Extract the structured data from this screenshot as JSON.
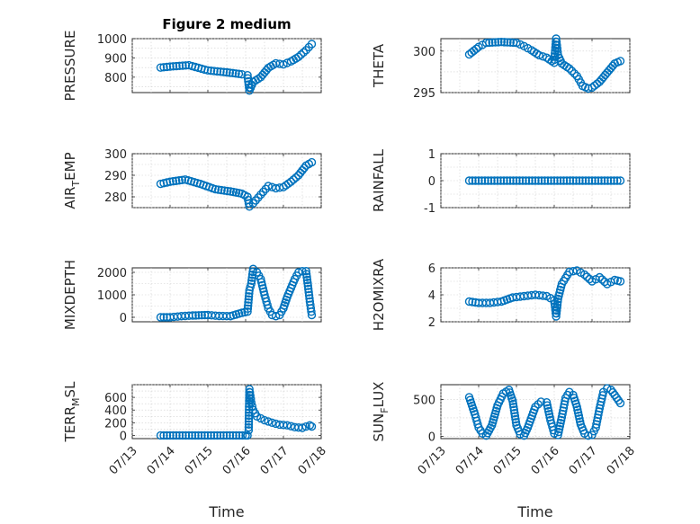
{
  "figure": {
    "title": "Figure 2 medium",
    "xlabel_left": "Time",
    "xlabel_right": "Time",
    "marker_color": "#0072BD"
  },
  "chart_data": [
    {
      "id": "pressure",
      "type": "scatter",
      "ylabel": "PRESSURE",
      "ylabel_sub": "",
      "ylabel_suffix": "",
      "ylim": [
        720,
        1000
      ],
      "yticks": [
        800,
        900,
        1000
      ],
      "xlim": [
        "07/13",
        "07/18"
      ],
      "xticks": [
        "07/13",
        "07/14",
        "07/15",
        "07/16",
        "07/17",
        "07/18"
      ],
      "show_xticklabels": false,
      "x": [
        0.75,
        1.0,
        1.5,
        2.0,
        2.5,
        2.9,
        3.05,
        3.1,
        3.2,
        3.4,
        3.6,
        3.8,
        4.0,
        4.2,
        4.4,
        4.6,
        4.75
      ],
      "y": [
        850,
        855,
        862,
        835,
        825,
        815,
        810,
        730,
        775,
        800,
        848,
        872,
        866,
        882,
        905,
        940,
        972
      ]
    },
    {
      "id": "theta",
      "type": "scatter",
      "ylabel": "THETA",
      "ylabel_sub": "",
      "ylabel_suffix": "",
      "ylim": [
        295,
        301.5
      ],
      "yticks": [
        295,
        300
      ],
      "xlim": [
        "07/13",
        "07/18"
      ],
      "xticks": [
        "07/13",
        "07/14",
        "07/15",
        "07/16",
        "07/17",
        "07/18"
      ],
      "show_xticklabels": false,
      "x": [
        0.75,
        1.0,
        1.2,
        1.6,
        2.0,
        2.2,
        2.4,
        2.6,
        2.8,
        3.0,
        3.05,
        3.1,
        3.2,
        3.4,
        3.6,
        3.75,
        3.9,
        4.0,
        4.2,
        4.4,
        4.6,
        4.75
      ],
      "y": [
        299.6,
        300.5,
        301.0,
        301.1,
        301.0,
        300.6,
        300.1,
        299.5,
        299.2,
        298.6,
        301.5,
        299.5,
        298.5,
        297.9,
        297.0,
        295.8,
        295.5,
        295.6,
        296.3,
        297.4,
        298.5,
        298.8
      ]
    },
    {
      "id": "air_temp",
      "type": "scatter",
      "ylabel": "AIR",
      "ylabel_sub": "T",
      "ylabel_suffix": "EMP",
      "ylim": [
        275,
        300
      ],
      "yticks": [
        280,
        290,
        300
      ],
      "xlim": [
        "07/13",
        "07/18"
      ],
      "xticks": [
        "07/13",
        "07/14",
        "07/15",
        "07/16",
        "07/17",
        "07/18"
      ],
      "show_xticklabels": false,
      "x": [
        0.75,
        1.0,
        1.4,
        1.8,
        2.2,
        2.6,
        2.9,
        3.05,
        3.1,
        3.2,
        3.4,
        3.6,
        3.8,
        4.0,
        4.2,
        4.4,
        4.6,
        4.75
      ],
      "y": [
        286,
        287,
        288,
        286,
        283.5,
        282.5,
        281.5,
        280,
        275.5,
        277,
        281,
        285,
        284,
        284.5,
        287,
        290,
        294.5,
        296
      ]
    },
    {
      "id": "rainfall",
      "type": "scatter",
      "ylabel": "RAINFALL",
      "ylabel_sub": "",
      "ylabel_suffix": "",
      "ylim": [
        -1,
        1
      ],
      "yticks": [
        -1,
        0,
        1
      ],
      "xlim": [
        "07/13",
        "07/18"
      ],
      "xticks": [
        "07/13",
        "07/14",
        "07/15",
        "07/16",
        "07/17",
        "07/18"
      ],
      "show_xticklabels": false,
      "x": [
        0.75,
        1.0,
        1.25,
        1.5,
        1.75,
        2.0,
        2.25,
        2.5,
        2.75,
        3.0,
        3.25,
        3.5,
        3.75,
        4.0,
        4.25,
        4.5,
        4.75
      ],
      "y": [
        0,
        0,
        0,
        0,
        0,
        0,
        0,
        0,
        0,
        0,
        0,
        0,
        0,
        0,
        0,
        0,
        0
      ]
    },
    {
      "id": "mixdepth",
      "type": "scatter",
      "ylabel": "MIXDEPTH",
      "ylabel_sub": "",
      "ylabel_suffix": "",
      "ylim": [
        -200,
        2200
      ],
      "yticks": [
        0,
        1000,
        2000
      ],
      "xlim": [
        "07/13",
        "07/18"
      ],
      "xticks": [
        "07/13",
        "07/14",
        "07/15",
        "07/16",
        "07/17",
        "07/18"
      ],
      "show_xticklabels": false,
      "x": [
        0.75,
        1.0,
        1.3,
        1.6,
        2.0,
        2.3,
        2.6,
        2.9,
        3.05,
        3.1,
        3.15,
        3.2,
        3.3,
        3.4,
        3.5,
        3.6,
        3.7,
        3.8,
        3.9,
        4.0,
        4.1,
        4.2,
        4.3,
        4.4,
        4.5,
        4.6,
        4.65,
        4.7,
        4.75
      ],
      "y": [
        0,
        0,
        50,
        80,
        100,
        60,
        50,
        200,
        250,
        1200,
        1500,
        2150,
        2000,
        1700,
        1000,
        400,
        100,
        50,
        100,
        400,
        900,
        1300,
        1700,
        2000,
        2050,
        2050,
        1400,
        700,
        100
      ]
    },
    {
      "id": "h2omixra",
      "type": "scatter",
      "ylabel": "H2OMIXRA",
      "ylabel_sub": "",
      "ylabel_suffix": "",
      "ylim": [
        2,
        6
      ],
      "yticks": [
        2,
        4,
        6
      ],
      "xlim": [
        "07/13",
        "07/18"
      ],
      "xticks": [
        "07/13",
        "07/14",
        "07/15",
        "07/16",
        "07/17",
        "07/18"
      ],
      "show_xticklabels": false,
      "x": [
        0.75,
        1.0,
        1.3,
        1.6,
        1.9,
        2.2,
        2.5,
        2.8,
        3.0,
        3.05,
        3.1,
        3.2,
        3.4,
        3.6,
        3.8,
        4.0,
        4.2,
        4.4,
        4.6,
        4.75
      ],
      "y": [
        3.5,
        3.4,
        3.4,
        3.5,
        3.8,
        3.9,
        4.0,
        3.9,
        3.6,
        2.4,
        3.7,
        4.8,
        5.7,
        5.8,
        5.5,
        5.0,
        5.3,
        4.8,
        5.1,
        5.0
      ]
    },
    {
      "id": "terr_msl",
      "type": "scatter",
      "ylabel": "TERR",
      "ylabel_sub": "M",
      "ylabel_suffix": "SL",
      "ylim": [
        -50,
        800
      ],
      "yticks": [
        0,
        200,
        400,
        600
      ],
      "xlim": [
        "07/13",
        "07/18"
      ],
      "xticks": [
        "07/13",
        "07/14",
        "07/15",
        "07/16",
        "07/17",
        "07/18"
      ],
      "show_xticklabels": true,
      "xticklabels": [
        "07/13",
        "07/14",
        "07/15",
        "07/16",
        "07/17",
        "07/18"
      ],
      "x": [
        0.75,
        1.0,
        1.25,
        1.5,
        1.75,
        2.0,
        2.25,
        2.5,
        2.75,
        3.0,
        3.05,
        3.08,
        3.1,
        3.15,
        3.2,
        3.3,
        3.5,
        3.7,
        3.9,
        4.1,
        4.3,
        4.5,
        4.7,
        4.75
      ],
      "y": [
        0,
        0,
        0,
        0,
        0,
        0,
        0,
        0,
        0,
        0,
        0,
        80,
        730,
        520,
        400,
        300,
        240,
        200,
        170,
        160,
        130,
        120,
        160,
        140
      ]
    },
    {
      "id": "sun_flux",
      "type": "scatter",
      "ylabel": "SUN",
      "ylabel_sub": "F",
      "ylabel_suffix": "LUX",
      "ylim": [
        -30,
        700
      ],
      "yticks": [
        0,
        500
      ],
      "xlim": [
        "07/13",
        "07/18"
      ],
      "xticks": [
        "07/13",
        "07/14",
        "07/15",
        "07/16",
        "07/17",
        "07/18"
      ],
      "show_xticklabels": true,
      "xticklabels": [
        "07/13",
        "07/14",
        "07/15",
        "07/16",
        "07/17",
        "07/18"
      ],
      "x": [
        0.75,
        0.9,
        1.0,
        1.1,
        1.2,
        1.35,
        1.5,
        1.65,
        1.8,
        1.9,
        2.0,
        2.1,
        2.2,
        2.3,
        2.5,
        2.65,
        2.8,
        2.9,
        3.0,
        3.1,
        3.2,
        3.3,
        3.4,
        3.5,
        3.6,
        3.7,
        3.8,
        3.9,
        4.0,
        4.1,
        4.2,
        4.3,
        4.4,
        4.5,
        4.6,
        4.75
      ],
      "y": [
        530,
        300,
        120,
        40,
        10,
        150,
        420,
        580,
        630,
        480,
        150,
        30,
        10,
        120,
        400,
        470,
        460,
        220,
        40,
        20,
        260,
        520,
        600,
        560,
        400,
        160,
        40,
        10,
        20,
        120,
        380,
        600,
        650,
        630,
        560,
        450
      ]
    }
  ]
}
